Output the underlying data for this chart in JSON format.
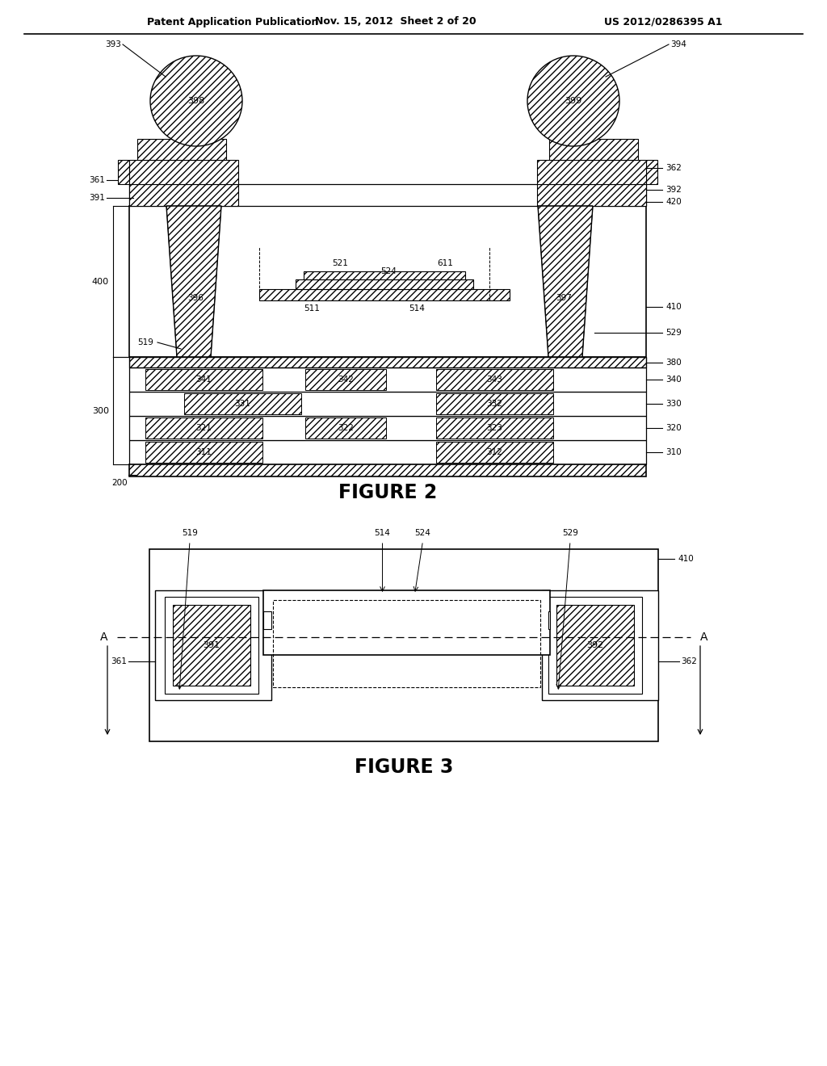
{
  "bg_color": "#ffffff",
  "header_left": "Patent Application Publication",
  "header_mid": "Nov. 15, 2012  Sheet 2 of 20",
  "header_right": "US 2012/0286395 A1",
  "fig2_caption": "FIGURE 2",
  "fig3_caption": "FIGURE 3"
}
